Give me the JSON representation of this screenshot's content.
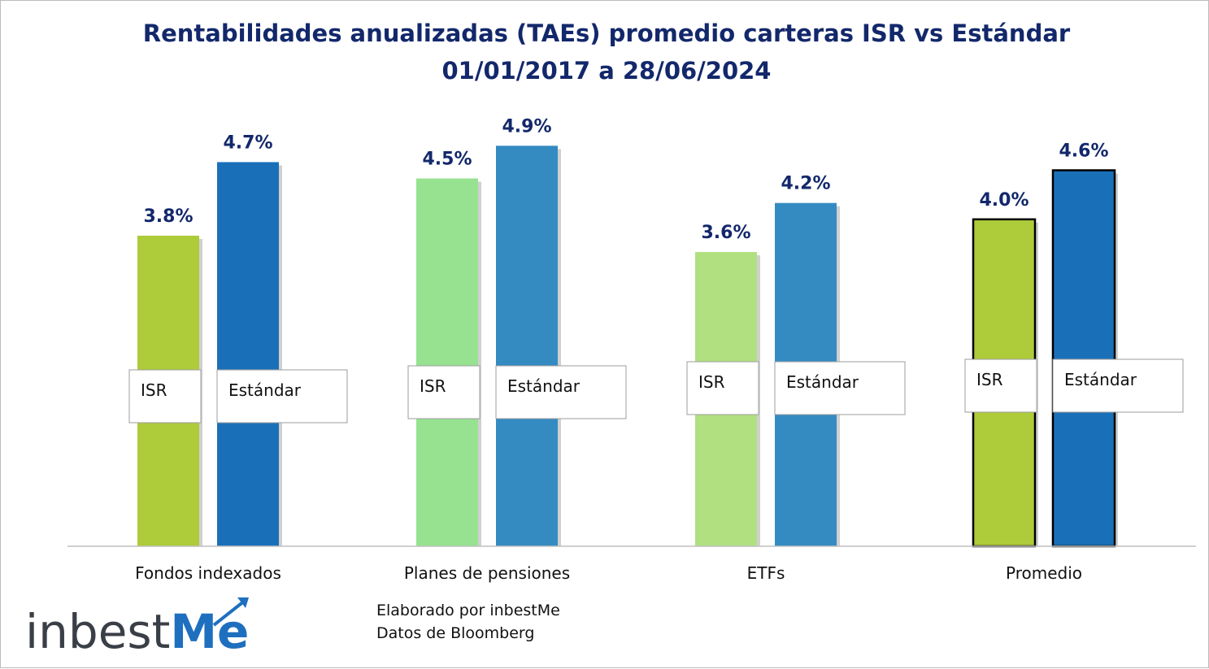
{
  "chart_data": {
    "type": "bar",
    "title": "Rentabilidades anualizadas (TAEs) promedio carteras ISR vs Estándar",
    "subtitle": "01/01/2017 a 28/06/2024",
    "categories": [
      "Fondos indexados",
      "Planes de pensiones",
      "ETFs",
      "Promedio"
    ],
    "series": [
      {
        "name": "ISR",
        "values": [
          3.8,
          4.5,
          3.6,
          4.0
        ],
        "colors": [
          "#aecb3a",
          "#96e290",
          "#b0e080",
          "#aecb3a"
        ]
      },
      {
        "name": "Estándar",
        "values": [
          4.7,
          4.9,
          4.2,
          4.6
        ],
        "colors": [
          "#1a70b8",
          "#348bc2",
          "#348bc2",
          "#1a70b8"
        ]
      }
    ],
    "value_labels": [
      [
        "3.8%",
        "4.5%",
        "3.6%",
        "4.0%"
      ],
      [
        "4.7%",
        "4.9%",
        "4.2%",
        "4.6%"
      ]
    ],
    "ylim": [
      0,
      5.5
    ],
    "grid": false,
    "legend": "none"
  },
  "notes": {
    "line1": "Elaborado por inbestMe",
    "line2": "Datos de Bloomberg"
  },
  "logo": {
    "text_main": "inbest",
    "text_accent": "Me"
  },
  "colors": {
    "title": "#13286b",
    "axis": "#bfbfbf",
    "highlight_border": "#000000",
    "logo_accent": "#1f6fbf"
  }
}
